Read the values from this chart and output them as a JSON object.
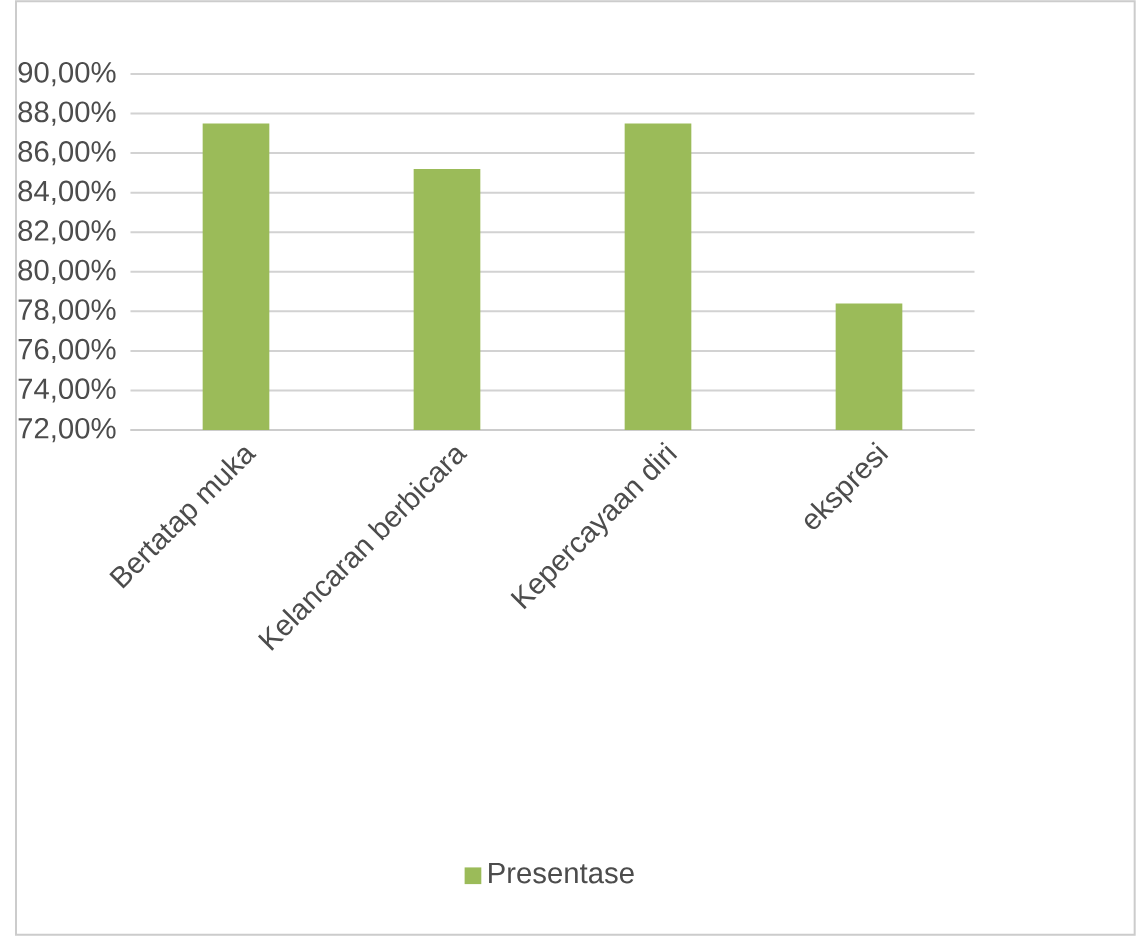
{
  "chart_data": {
    "type": "bar",
    "categories": [
      "Bertatap muka",
      "Kelancaran berbicara",
      "Kepercayaan diri",
      "ekspresi"
    ],
    "series": [
      {
        "name": "Presentase",
        "color": "#9bbb59",
        "values": [
          87.5,
          85.2,
          87.5,
          78.4
        ]
      }
    ],
    "ylim": [
      72,
      90
    ],
    "yticks": [
      {
        "value": 72,
        "label": "72,00%"
      },
      {
        "value": 74,
        "label": "74,00%"
      },
      {
        "value": 76,
        "label": "76,00%"
      },
      {
        "value": 78,
        "label": "78,00%"
      },
      {
        "value": 80,
        "label": "80,00%"
      },
      {
        "value": 82,
        "label": "82,00%"
      },
      {
        "value": 84,
        "label": "84,00%"
      },
      {
        "value": 86,
        "label": "86,00%"
      },
      {
        "value": 88,
        "label": "88,00%"
      },
      {
        "value": 90,
        "label": "90,00%"
      }
    ],
    "grid": "y",
    "legend": "bottom"
  }
}
